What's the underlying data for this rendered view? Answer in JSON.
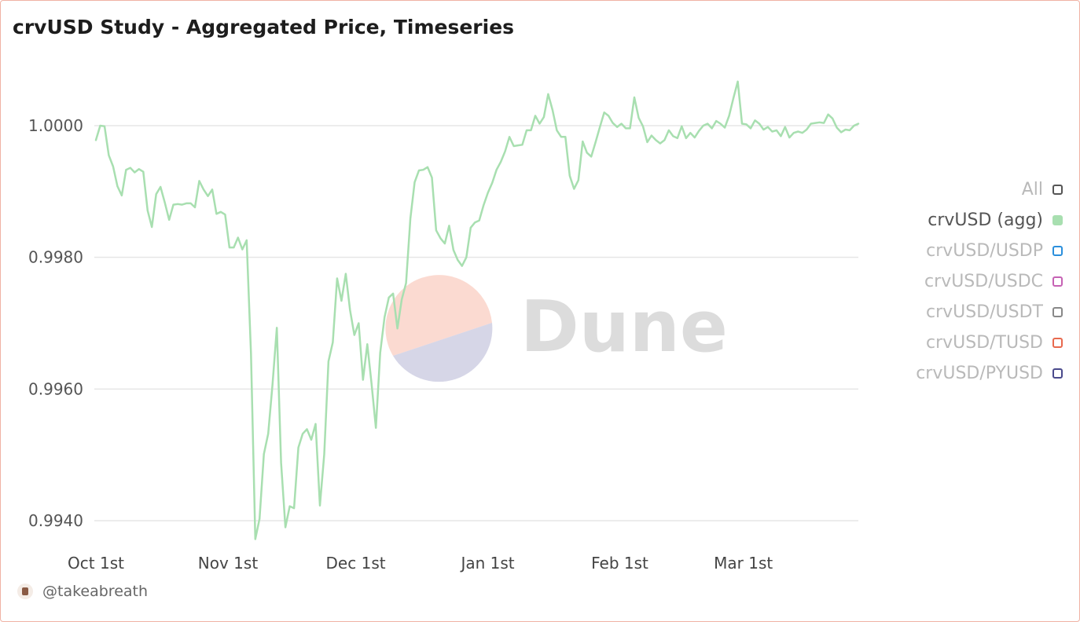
{
  "title": "crvUSD Study - Aggregated Price, Timeseries",
  "watermark": "Dune",
  "credit": "@takeabreath",
  "legend": [
    {
      "label": "All",
      "color": "#555555",
      "filled": false,
      "active": false
    },
    {
      "label": "crvUSD (agg)",
      "color": "#a8dfb0",
      "filled": true,
      "active": true
    },
    {
      "label": "crvUSD/USDP",
      "color": "#2b8fdc",
      "filled": false,
      "active": false
    },
    {
      "label": "crvUSD/USDC",
      "color": "#c662b4",
      "filled": false,
      "active": false
    },
    {
      "label": "crvUSD/USDT",
      "color": "#888888",
      "filled": false,
      "active": false
    },
    {
      "label": "crvUSD/TUSD",
      "color": "#e8694e",
      "filled": false,
      "active": false
    },
    {
      "label": "crvUSD/PYUSD",
      "color": "#4a4a8c",
      "filled": false,
      "active": false
    }
  ],
  "chart_data": {
    "type": "line",
    "title": "crvUSD Study - Aggregated Price, Timeseries",
    "xlabel": "",
    "ylabel": "",
    "x_start": "2023-10-01",
    "x_end": "2024-03-28",
    "x_ticks": [
      {
        "label": "Oct 1st",
        "date": "2023-10-01"
      },
      {
        "label": "Nov 1st",
        "date": "2023-11-01"
      },
      {
        "label": "Dec 1st",
        "date": "2023-12-01"
      },
      {
        "label": "Jan 1st",
        "date": "2024-01-01"
      },
      {
        "label": "Feb 1st",
        "date": "2024-02-01"
      },
      {
        "label": "Mar 1st",
        "date": "2024-03-01"
      }
    ],
    "y_ticks": [
      {
        "label": "0.9940",
        "value": 0.994
      },
      {
        "label": "0.9960",
        "value": 0.996
      },
      {
        "label": "0.9980",
        "value": 0.998
      },
      {
        "label": "1.0000",
        "value": 1.0
      }
    ],
    "ylim": [
      0.99375,
      1.00105
    ],
    "grid": true,
    "legend_position": "right",
    "series": [
      {
        "name": "crvUSD (agg)",
        "color": "#a8dfb0",
        "values": [
          0.99978,
          1.0,
          0.99999,
          0.99955,
          0.99938,
          0.99908,
          0.99894,
          0.99933,
          0.99936,
          0.99929,
          0.99934,
          0.9993,
          0.99871,
          0.99846,
          0.99896,
          0.99907,
          0.99883,
          0.99857,
          0.9988,
          0.99881,
          0.9988,
          0.99882,
          0.99882,
          0.99876,
          0.99916,
          0.99903,
          0.99893,
          0.99903,
          0.99866,
          0.99869,
          0.99865,
          0.99815,
          0.99815,
          0.9983,
          0.99812,
          0.99826,
          0.99654,
          0.99372,
          0.99403,
          0.99501,
          0.99532,
          0.99607,
          0.99693,
          0.99488,
          0.9939,
          0.99422,
          0.99419,
          0.99511,
          0.99532,
          0.99539,
          0.99523,
          0.99547,
          0.99423,
          0.99501,
          0.99642,
          0.99671,
          0.99768,
          0.99734,
          0.99775,
          0.9972,
          0.99682,
          0.997,
          0.99614,
          0.99668,
          0.99608,
          0.99541,
          0.99655,
          0.99709,
          0.99739,
          0.99745,
          0.99692,
          0.99736,
          0.99761,
          0.99859,
          0.99914,
          0.99932,
          0.99933,
          0.99937,
          0.99921,
          0.99841,
          0.99829,
          0.99821,
          0.99848,
          0.99811,
          0.99796,
          0.99787,
          0.998,
          0.99845,
          0.99853,
          0.99856,
          0.99879,
          0.99898,
          0.99913,
          0.99933,
          0.99945,
          0.99961,
          0.99983,
          0.99969,
          0.9997,
          0.99971,
          0.99993,
          0.99993,
          1.00015,
          1.00003,
          1.00013,
          1.00048,
          1.00024,
          0.99993,
          0.99983,
          0.99983,
          0.99924,
          0.99904,
          0.99917,
          0.99976,
          0.99959,
          0.99953,
          0.99975,
          0.99998,
          1.0002,
          1.00015,
          1.00004,
          0.99998,
          1.00003,
          0.99996,
          0.99996,
          1.00043,
          1.00012,
          0.99999,
          0.99975,
          0.99985,
          0.99978,
          0.99973,
          0.99978,
          0.99993,
          0.99984,
          0.99981,
          0.99999,
          0.99981,
          0.99989,
          0.99982,
          0.99992,
          1.0,
          1.00003,
          0.99996,
          1.00007,
          1.00003,
          0.99997,
          1.00015,
          1.00042,
          1.00067,
          1.00003,
          1.00002,
          0.99996,
          1.00008,
          1.00003,
          0.99994,
          0.99998,
          0.99991,
          0.99993,
          0.99984,
          0.99998,
          0.99982,
          0.99989,
          0.99991,
          0.99989,
          0.99994,
          1.00003,
          1.00004,
          1.00005,
          1.00004,
          1.00017,
          1.00011,
          0.99997,
          0.9999,
          0.99994,
          0.99993,
          1.0,
          1.00003
        ]
      }
    ]
  }
}
